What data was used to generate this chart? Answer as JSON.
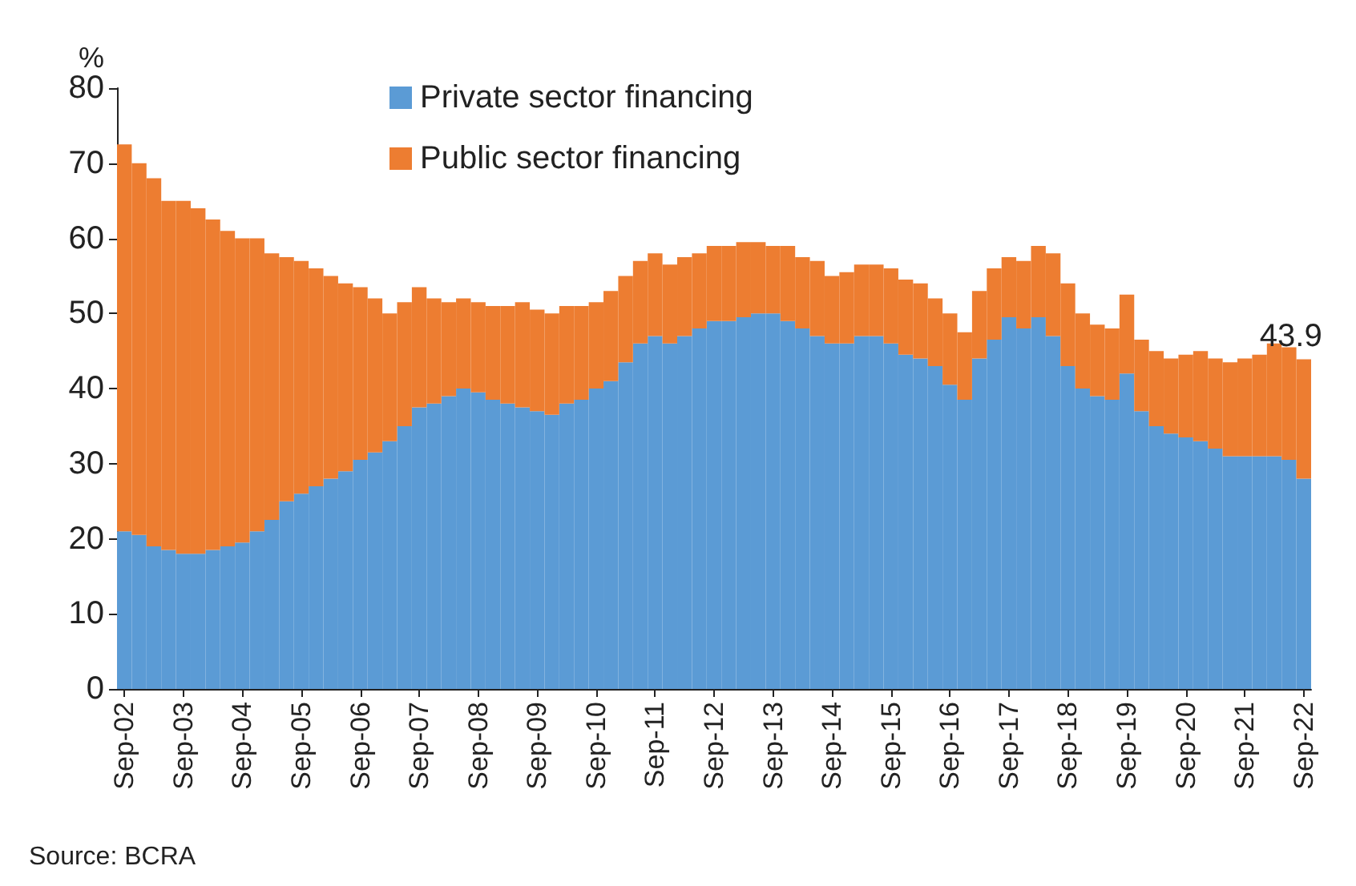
{
  "chart_data": {
    "type": "bar",
    "stacked": true,
    "ylabel": "%",
    "categories": [
      "Sep-02",
      null,
      null,
      null,
      "Sep-03",
      null,
      null,
      null,
      "Sep-04",
      null,
      null,
      null,
      "Sep-05",
      null,
      null,
      null,
      "Sep-06",
      null,
      null,
      null,
      "Sep-07",
      null,
      null,
      null,
      "Sep-08",
      null,
      null,
      null,
      "Sep-09",
      null,
      null,
      null,
      "Sep-10",
      null,
      null,
      null,
      "Sep-11",
      null,
      null,
      null,
      "Sep-12",
      null,
      null,
      null,
      "Sep-13",
      null,
      null,
      null,
      "Sep-14",
      null,
      null,
      null,
      "Sep-15",
      null,
      null,
      null,
      "Sep-16",
      null,
      null,
      null,
      "Sep-17",
      null,
      null,
      null,
      "Sep-18",
      null,
      null,
      null,
      "Sep-19",
      null,
      null,
      null,
      "Sep-20",
      null,
      null,
      null,
      "Sep-21",
      null,
      null,
      null,
      "Sep-22"
    ],
    "series": [
      {
        "name": "Private sector financing",
        "color": "#5b9bd5",
        "values": [
          21,
          20.5,
          19,
          18.5,
          18,
          18,
          18.5,
          19,
          19.5,
          21,
          22.5,
          25,
          26,
          27,
          28,
          29,
          30.5,
          31.5,
          33,
          35,
          37.5,
          38,
          39,
          40,
          39.5,
          38.5,
          38,
          37.5,
          37,
          36.5,
          38,
          38.5,
          40,
          41,
          43.5,
          46,
          47,
          46,
          47,
          48,
          49,
          49,
          49.5,
          50,
          50,
          49,
          48,
          47,
          46,
          46,
          47,
          47,
          46,
          44.5,
          44,
          43,
          40.5,
          38.5,
          44,
          46.5,
          49.5,
          48,
          49.5,
          47,
          43,
          40,
          39,
          38.5,
          42,
          37,
          35,
          34,
          33.5,
          33,
          32,
          31,
          31,
          31,
          31,
          30.5,
          28
        ]
      },
      {
        "name": "Public sector financing",
        "color": "#ed7d31",
        "values": [
          51.5,
          49.5,
          49,
          46.5,
          47,
          46,
          44,
          42,
          40.5,
          39,
          35.5,
          32.5,
          31,
          29,
          27,
          25,
          23,
          20.5,
          17,
          16.5,
          16,
          14,
          12.5,
          12,
          12,
          12.5,
          13,
          14,
          13.5,
          13.5,
          13,
          12.5,
          11.5,
          12,
          11.5,
          11,
          11,
          10.5,
          10.5,
          10,
          10,
          10,
          10,
          9.5,
          9,
          10,
          9.5,
          10,
          9,
          9.5,
          9.5,
          9.5,
          10,
          10,
          10,
          9,
          9.5,
          9,
          9,
          9.5,
          8,
          9,
          9.5,
          11,
          11,
          10,
          9.5,
          9.5,
          10.5,
          9.5,
          10,
          10,
          11,
          12,
          12,
          12.5,
          13,
          13.5,
          15,
          15,
          15.9
        ]
      }
    ],
    "ylim": [
      0,
      80
    ],
    "yticks": [
      0,
      10,
      20,
      30,
      40,
      50,
      60,
      70,
      80
    ],
    "legend": "top",
    "annotations": [
      {
        "text": "43.9",
        "x": "Sep-22",
        "y": 43.9
      },
      "Source: BCRA"
    ]
  }
}
